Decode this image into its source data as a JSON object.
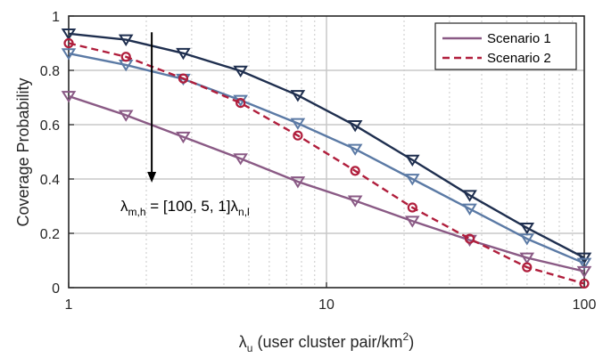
{
  "chart_data": {
    "type": "line",
    "xscale": "log",
    "xlim": [
      1,
      100
    ],
    "ylim": [
      0,
      1
    ],
    "xticks": [
      1,
      10,
      100
    ],
    "xtick_labels": [
      "1",
      "10",
      "100"
    ],
    "yticks": [
      0,
      0.2,
      0.4,
      0.6,
      0.8,
      1
    ],
    "ytick_labels": [
      "0",
      "0.2",
      "0.4",
      "0.6",
      "0.8",
      "1"
    ],
    "ylabel": "Coverage Probability",
    "xlabel": {
      "symbol": "λ",
      "subscript": "u",
      "text": " (user cluster pair/km",
      "superscript": "2",
      "suffix": ")"
    },
    "grid": true,
    "legend": {
      "placement": "top-right",
      "entries": [
        {
          "label": "Scenario 1",
          "color": "#8a5a85",
          "dash": "solid"
        },
        {
          "label": "Scenario 2",
          "color": "#b01e3c",
          "dash": "dashed"
        }
      ]
    },
    "annotation": {
      "parts": [
        {
          "text": "λ",
          "sub": false
        },
        {
          "text": "m,h",
          "sub": true
        },
        {
          "text": " = [100, 5, 1]",
          "sub": false
        },
        {
          "text": "λ",
          "sub": false
        },
        {
          "text": "n,l",
          "sub": true
        }
      ],
      "arrow": {
        "x": 2.1,
        "y_from": 0.94,
        "y_to": 0.39
      }
    },
    "x": [
      1,
      1.668,
      2.783,
      4.642,
      7.743,
      12.92,
      21.54,
      35.94,
      59.95,
      100
    ],
    "series": [
      {
        "color": "#1f2f4f",
        "dash": "solid",
        "marker": "triangle-down",
        "values": [
          0.935,
          0.913,
          0.863,
          0.798,
          0.708,
          0.597,
          0.47,
          0.34,
          0.22,
          0.11
        ]
      },
      {
        "color": "#5b7aa5",
        "dash": "solid",
        "marker": "triangle-down",
        "values": [
          0.862,
          0.82,
          0.768,
          0.69,
          0.605,
          0.51,
          0.4,
          0.29,
          0.18,
          0.09
        ]
      },
      {
        "color": "#8a5a85",
        "dash": "solid",
        "marker": "triangle-down",
        "values": [
          0.705,
          0.635,
          0.555,
          0.475,
          0.39,
          0.32,
          0.245,
          0.175,
          0.11,
          0.06
        ]
      },
      {
        "color": "#b01e3c",
        "dash": "dashed",
        "marker": "circle",
        "values": [
          0.9,
          0.85,
          0.77,
          0.68,
          0.56,
          0.43,
          0.295,
          0.18,
          0.075,
          0.015
        ]
      }
    ]
  }
}
